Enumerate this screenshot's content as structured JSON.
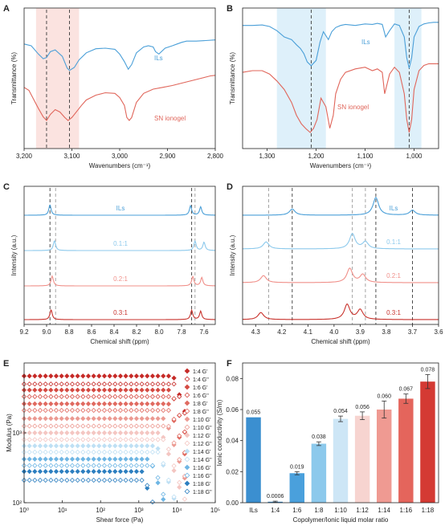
{
  "colors": {
    "blue": "#4a9fd8",
    "red": "#e0655a",
    "light_blue": "#8cc9ec",
    "pink": "#f0908a",
    "dark_red": "#c8322c",
    "band_red": "#fbe3e0",
    "band_blue": "#def0fa",
    "dashed": "#3a3a3a",
    "dashed_light": "#9a9a9a"
  },
  "chart_data": [
    {
      "panel": "A",
      "type": "line",
      "xlabel": "Wavenumbers (cm⁻¹)",
      "ylabel": "Transmittance (%)",
      "xlim": [
        3200,
        2800
      ],
      "xticks": [
        "3,200",
        "3,100",
        "3,000",
        "2,900",
        "2,800"
      ],
      "xtick_values": [
        3200,
        3100,
        3000,
        2900,
        2800
      ],
      "highlight_band": [
        3175,
        3085
      ],
      "dashed_lines": [
        3153,
        3105
      ],
      "series": [
        {
          "name": "ILs",
          "color": "blue",
          "x": [
            3200,
            3185,
            3170,
            3160,
            3153,
            3145,
            3135,
            3120,
            3110,
            3105,
            3095,
            3085,
            3070,
            3050,
            3030,
            3010,
            3000,
            2990,
            2982,
            2975,
            2965,
            2950,
            2940,
            2930,
            2925,
            2918,
            2905,
            2890,
            2880,
            2870,
            2860,
            2850,
            2840,
            2820,
            2800
          ],
          "y": [
            0.55,
            0.52,
            0.38,
            0.3,
            0.32,
            0.42,
            0.45,
            0.34,
            0.14,
            0.1,
            0.15,
            0.28,
            0.4,
            0.47,
            0.48,
            0.46,
            0.38,
            0.25,
            0.12,
            0.2,
            0.4,
            0.5,
            0.52,
            0.5,
            0.42,
            0.38,
            0.48,
            0.52,
            0.55,
            0.58,
            0.6,
            0.6,
            0.6,
            0.61,
            0.62
          ]
        },
        {
          "name": "SN ionogel",
          "color": "red",
          "x": [
            3200,
            3190,
            3180,
            3170,
            3160,
            3153,
            3145,
            3135,
            3125,
            3115,
            3108,
            3100,
            3090,
            3080,
            3070,
            3050,
            3030,
            3010,
            3000,
            2990,
            2985,
            2980,
            2975,
            2965,
            2950,
            2930,
            2910,
            2890,
            2870,
            2850,
            2830,
            2820,
            2810,
            2800
          ],
          "y": [
            0.55,
            0.5,
            0.35,
            0.2,
            0.06,
            0.0,
            0.1,
            0.18,
            0.14,
            0.05,
            0.0,
            0.05,
            0.15,
            0.25,
            0.34,
            0.42,
            0.46,
            0.45,
            0.38,
            0.25,
            0.05,
            0.0,
            0.05,
            0.3,
            0.45,
            0.52,
            0.55,
            0.58,
            0.62,
            0.66,
            0.7,
            0.72,
            0.74,
            0.75
          ]
        }
      ],
      "labels": [
        {
          "text": "ILs",
          "color": "blue"
        },
        {
          "text": "SN ionogel",
          "color": "red"
        }
      ]
    },
    {
      "panel": "B",
      "type": "line",
      "xlabel": "Wavenumbers (cm⁻¹)",
      "ylabel": "Transmittance (%)",
      "xlim": [
        1350,
        950
      ],
      "xticks": [
        "1,300",
        "1,200",
        "1,100",
        "1,000"
      ],
      "xtick_values": [
        1300,
        1200,
        1100,
        1000
      ],
      "highlight_bands": [
        [
          1280,
          1180
        ],
        [
          1040,
          985
        ]
      ],
      "dashed_lines": [
        1210,
        1010
      ],
      "series": [
        {
          "name": "ILs",
          "color": "blue",
          "x": [
            1350,
            1330,
            1310,
            1295,
            1280,
            1265,
            1250,
            1240,
            1232,
            1225,
            1218,
            1210,
            1200,
            1192,
            1185,
            1175,
            1168,
            1160,
            1150,
            1140,
            1130,
            1120,
            1100,
            1085,
            1075,
            1065,
            1058,
            1050,
            1040,
            1030,
            1020,
            1015,
            1010,
            1005,
            1000,
            990,
            980,
            970,
            960,
            950
          ],
          "y": [
            0.82,
            0.82,
            0.83,
            0.8,
            0.72,
            0.6,
            0.55,
            0.45,
            0.38,
            0.28,
            0.12,
            0.05,
            0.15,
            0.5,
            0.7,
            0.55,
            0.7,
            0.78,
            0.82,
            0.84,
            0.83,
            0.82,
            0.85,
            0.84,
            0.86,
            0.84,
            0.6,
            0.72,
            0.85,
            0.82,
            0.6,
            0.2,
            0.0,
            0.2,
            0.6,
            0.8,
            0.85,
            0.87,
            0.88,
            0.88
          ]
        },
        {
          "name": "SN ionogel",
          "color": "red",
          "x": [
            1350,
            1330,
            1310,
            1295,
            1280,
            1265,
            1250,
            1240,
            1230,
            1220,
            1212,
            1205,
            1198,
            1190,
            1180,
            1172,
            1165,
            1160,
            1150,
            1140,
            1120,
            1100,
            1085,
            1075,
            1065,
            1060,
            1050,
            1040,
            1030,
            1020,
            1015,
            1010,
            1005,
            1000,
            990,
            980,
            970,
            960,
            950
          ],
          "y": [
            0.7,
            0.72,
            0.72,
            0.68,
            0.6,
            0.5,
            0.35,
            0.2,
            0.1,
            0.04,
            0.0,
            0.05,
            0.15,
            0.4,
            0.3,
            0.05,
            0.2,
            0.45,
            0.62,
            0.7,
            0.74,
            0.76,
            0.72,
            0.74,
            0.7,
            0.45,
            0.68,
            0.76,
            0.7,
            0.45,
            0.15,
            0.0,
            0.15,
            0.5,
            0.72,
            0.78,
            0.8,
            0.8,
            0.8
          ]
        }
      ],
      "labels": [
        {
          "text": "ILs",
          "color": "blue"
        },
        {
          "text": "SN ionogel",
          "color": "red"
        }
      ]
    },
    {
      "panel": "C",
      "type": "line",
      "xlabel": "Chemical shift (ppm)",
      "ylabel": "Intensity (a.u.)",
      "xlim": [
        9.2,
        7.5
      ],
      "xticks": [
        "9.2",
        "9.0",
        "8.8",
        "8.6",
        "8.4",
        "8.2",
        "8.0",
        "7.8",
        "7.6"
      ],
      "xtick_values": [
        9.2,
        9.0,
        8.8,
        8.6,
        8.4,
        8.2,
        8.0,
        7.8,
        7.6
      ],
      "dashed_dark": [
        8.97,
        7.71
      ],
      "dashed_light": [
        8.92,
        7.68
      ],
      "series": [
        {
          "name": "ILs",
          "color": "blue",
          "peaks": [
            [
              8.97,
              1.0
            ],
            [
              7.72,
              0.9
            ],
            [
              7.63,
              0.8
            ]
          ]
        },
        {
          "name": "0.1:1",
          "color": "light_blue",
          "peaks": [
            [
              8.93,
              0.95
            ],
            [
              7.68,
              0.9
            ],
            [
              7.6,
              0.8
            ]
          ]
        },
        {
          "name": "0.2:1",
          "color": "pink",
          "peaks": [
            [
              8.95,
              0.95
            ],
            [
              7.7,
              0.9
            ],
            [
              7.62,
              0.8
            ]
          ]
        },
        {
          "name": "0.3:1",
          "color": "dark_red",
          "peaks": [
            [
              8.96,
              0.95
            ],
            [
              7.71,
              0.9
            ],
            [
              7.63,
              0.8
            ]
          ]
        }
      ]
    },
    {
      "panel": "D",
      "type": "line",
      "xlabel": "Chemical shift (ppm)",
      "ylabel": "Intensity (a.u.)",
      "xlim": [
        4.35,
        3.6
      ],
      "xticks": [
        "4.3",
        "4.2",
        "4.1",
        "4.0",
        "3.9",
        "3.8",
        "3.7",
        "3.6"
      ],
      "xtick_values": [
        4.3,
        4.2,
        4.1,
        4.0,
        3.9,
        3.8,
        3.7,
        3.6
      ],
      "dashed_dark": [
        4.16,
        3.84,
        3.7
      ],
      "dashed_light": [
        4.25,
        3.93,
        3.88
      ],
      "series": [
        {
          "name": "ILs",
          "color": "blue",
          "peaks": [
            [
              4.16,
              0.35
            ],
            [
              3.84,
              1.0
            ],
            [
              3.7,
              0.28
            ]
          ]
        },
        {
          "name": "0.1:1",
          "color": "light_blue",
          "peaks": [
            [
              4.26,
              0.4
            ],
            [
              3.93,
              0.85
            ],
            [
              3.88,
              0.4
            ]
          ]
        },
        {
          "name": "0.2:1",
          "color": "pink",
          "peaks": [
            [
              4.27,
              0.4
            ],
            [
              3.94,
              0.8
            ],
            [
              3.89,
              0.45
            ]
          ]
        },
        {
          "name": "0.3:1",
          "color": "dark_red",
          "peaks": [
            [
              4.28,
              0.4
            ],
            [
              3.95,
              0.85
            ],
            [
              3.9,
              0.55
            ]
          ]
        }
      ]
    },
    {
      "panel": "E",
      "type": "scatter",
      "xlabel": "Shear force (Pa)",
      "ylabel": "Modulus (Pa)",
      "x_scale": "log",
      "y_scale": "log",
      "xlim": [
        1,
        100000
      ],
      "ylim": [
        100,
        10000
      ],
      "xticks": [
        "10⁰",
        "10¹",
        "10²",
        "10³",
        "10⁴",
        "10⁵"
      ],
      "xtick_values": [
        1,
        10,
        100,
        1000,
        10000,
        100000
      ],
      "yticks": [
        "10²",
        "10³"
      ],
      "ytick_values": [
        100,
        1000
      ],
      "legend": [
        "1:4 G'",
        "1:4 G''",
        "1:6 G'",
        "1:6 G''",
        "1:8 G'",
        "1:8 G''",
        "1:10 G'",
        "1:10 G''",
        "1:12 G'",
        "1:12 G''",
        "1:14 G'",
        "1:14 G''",
        "1:16 G'",
        "1:16 G''",
        "1:18 G'",
        "1:18 G''"
      ],
      "series": [
        {
          "name": "1:4 G'",
          "color": "#c62a27",
          "filled": true,
          "plateau": 6500,
          "x_break": 8000
        },
        {
          "name": "1:4 G''",
          "color": "#c62a27",
          "filled": false,
          "plateau": 5000,
          "x_break": 9000
        },
        {
          "name": "1:6 G'",
          "color": "#d54a42",
          "filled": true,
          "plateau": 4100,
          "x_break": 7000
        },
        {
          "name": "1:6 G''",
          "color": "#d54a42",
          "filled": false,
          "plateau": 3300,
          "x_break": 8000
        },
        {
          "name": "1:8 G'",
          "color": "#e06a60",
          "filled": true,
          "plateau": 2600,
          "x_break": 6000
        },
        {
          "name": "1:8 G''",
          "color": "#e06a60",
          "filled": false,
          "plateau": 2100,
          "x_break": 7000
        },
        {
          "name": "1:10 G'",
          "color": "#ec9b93",
          "filled": true,
          "plateau": 1600,
          "x_break": 5000
        },
        {
          "name": "1:10 G''",
          "color": "#ec9b93",
          "filled": false,
          "plateau": 1250,
          "x_break": 6000
        },
        {
          "name": "1:12 G'",
          "color": "#f4c6c2",
          "filled": true,
          "plateau": 1000,
          "x_break": 4000
        },
        {
          "name": "1:12 G''",
          "color": "#f4c6c2",
          "filled": false,
          "plateau": 800,
          "x_break": 5000
        },
        {
          "name": "1:14 G'",
          "color": "#bfe0f4",
          "filled": true,
          "plateau": 650,
          "x_break": 3000
        },
        {
          "name": "1:14 G''",
          "color": "#bfe0f4",
          "filled": false,
          "plateau": 530,
          "x_break": 3500
        },
        {
          "name": "1:16 G'",
          "color": "#6fb6e4",
          "filled": true,
          "plateau": 420,
          "x_break": 2000
        },
        {
          "name": "1:16 G''",
          "color": "#6fb6e4",
          "filled": false,
          "plateau": 340,
          "x_break": 2500
        },
        {
          "name": "1:18 G'",
          "color": "#2d7fc0",
          "filled": true,
          "plateau": 280,
          "x_break": 1200
        },
        {
          "name": "1:18 G''",
          "color": "#2d7fc0",
          "filled": false,
          "plateau": 210,
          "x_break": 1500
        }
      ]
    },
    {
      "panel": "F",
      "type": "bar",
      "xlabel": "Copolymer/Ionic liquid molar ratio",
      "ylabel": "Ionic conductivity      (S/m)",
      "ylim": [
        0,
        0.09
      ],
      "yticks": [
        "0.00",
        "0.02",
        "0.04",
        "0.06",
        "0.08"
      ],
      "ytick_values": [
        0,
        0.02,
        0.04,
        0.06,
        0.08
      ],
      "categories": [
        "ILs",
        "1:4",
        "1:6",
        "1:8",
        "1:10",
        "1:12",
        "1:14",
        "1:16",
        "1:18"
      ],
      "values": [
        0.055,
        0.0006,
        0.019,
        0.038,
        0.054,
        0.056,
        0.06,
        0.067,
        0.078
      ],
      "errors": [
        0,
        0.0004,
        0.001,
        0.0012,
        0.0018,
        0.0025,
        0.0055,
        0.003,
        0.0045
      ],
      "value_labels": [
        "0.055",
        "0.0006",
        "0.019",
        "0.038",
        "0.054",
        "0.056",
        "0.060",
        "0.067",
        "0.078"
      ],
      "bar_colors": [
        "#3b8fd0",
        "#2d7fc0",
        "#4aa0dc",
        "#8cc9ec",
        "#cde6f6",
        "#f7d4d0",
        "#ef9a92",
        "#e4655c",
        "#d43a33"
      ]
    }
  ]
}
